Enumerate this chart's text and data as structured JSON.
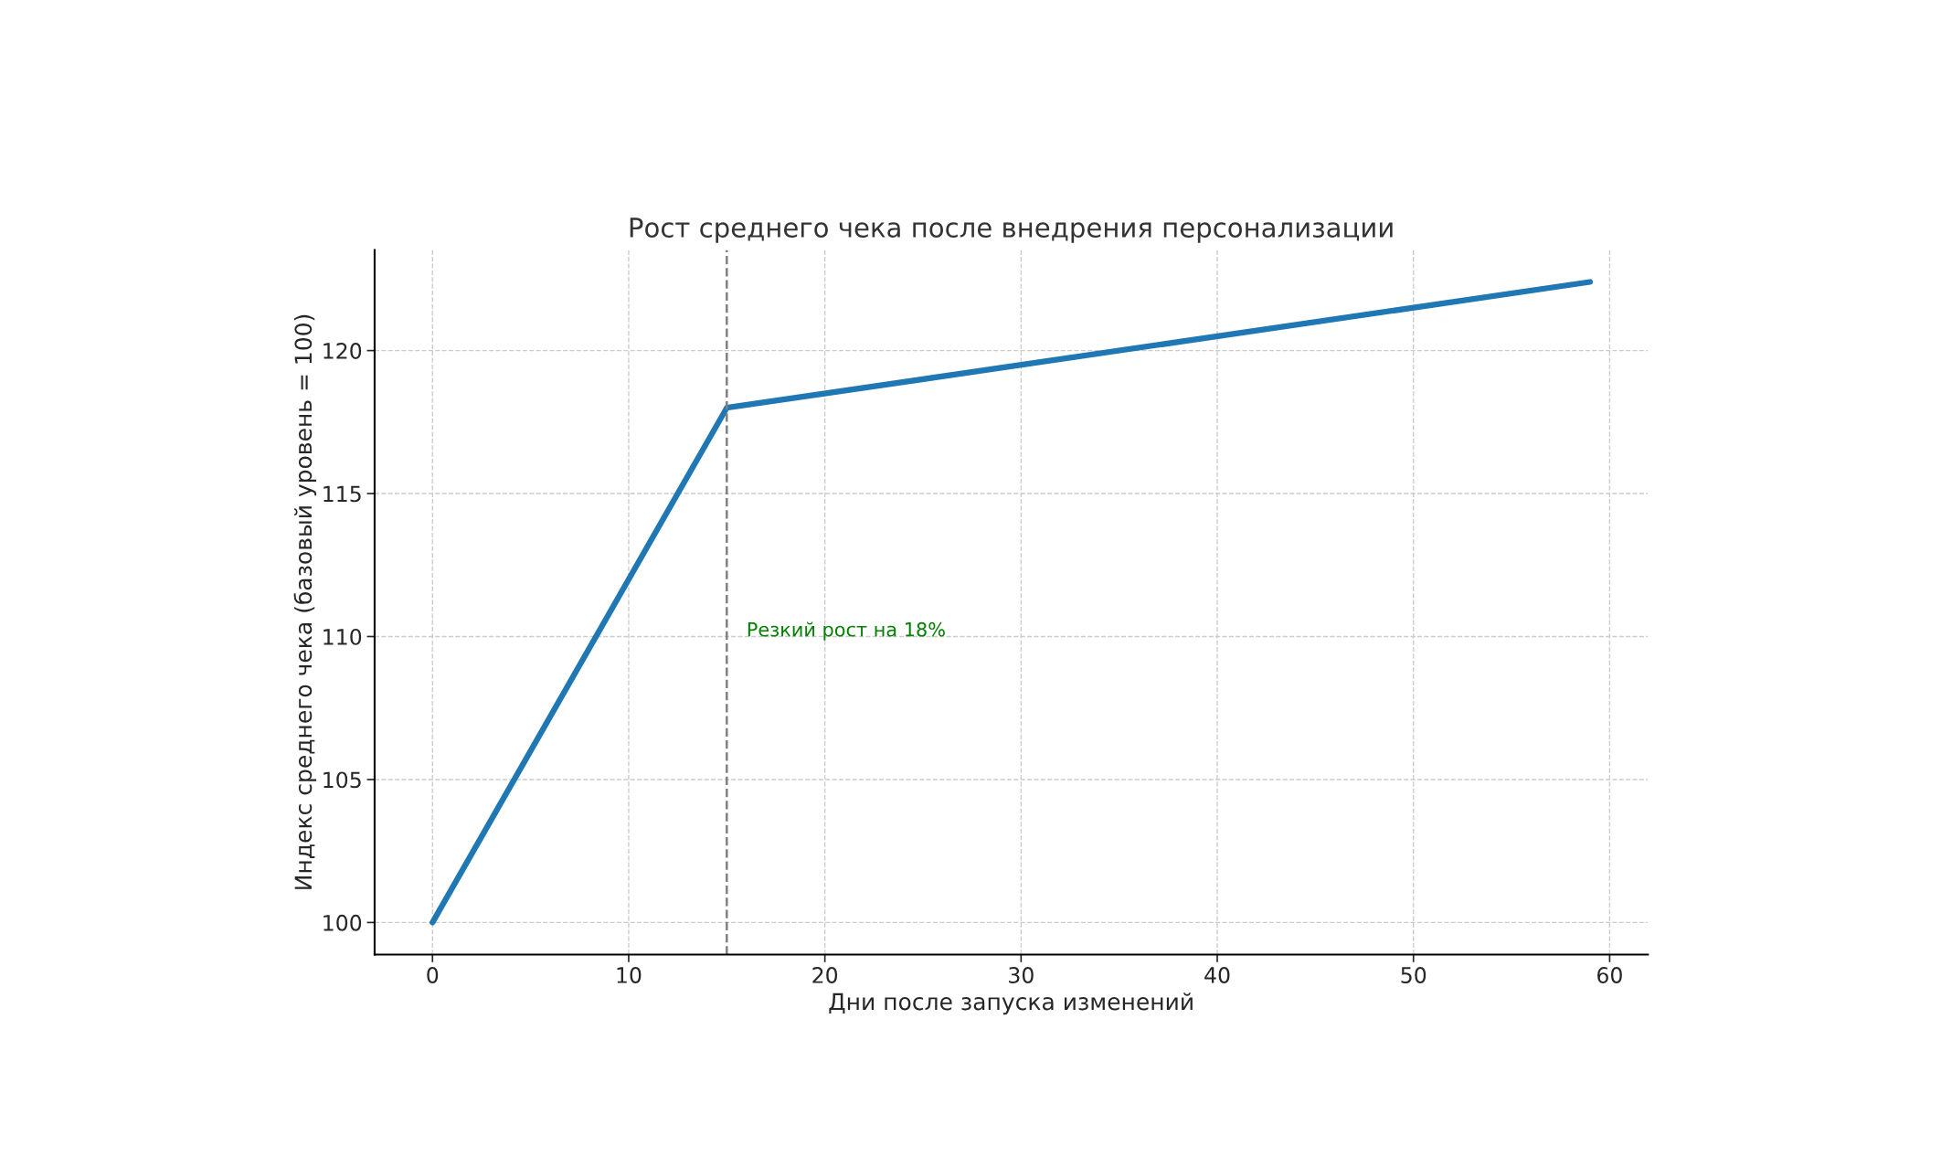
{
  "chart_data": {
    "type": "line",
    "title": "Рост среднего чека после внедрения персонализации",
    "xlabel": "Дни после запуска изменений",
    "ylabel": "Индекс среднего чека (базовый уровень = 100)",
    "x": [
      0,
      15,
      59
    ],
    "series": [
      {
        "color": "#1f77b4",
        "values": [
          100,
          118,
          122.4
        ]
      }
    ],
    "xlim": [
      -2.95,
      61.95
    ],
    "ylim": [
      98.88,
      123.52
    ],
    "xticks": [
      0,
      10,
      20,
      30,
      40,
      50,
      60
    ],
    "yticks": [
      100,
      105,
      110,
      115,
      120
    ],
    "ref_lines": [
      {
        "axis": "x",
        "value": 15,
        "color": "#808080",
        "line_style": "dashed"
      }
    ],
    "annotations": [
      "Резкий рост на 18%"
    ],
    "grid": true,
    "marker": "none",
    "line_style": "solid"
  }
}
